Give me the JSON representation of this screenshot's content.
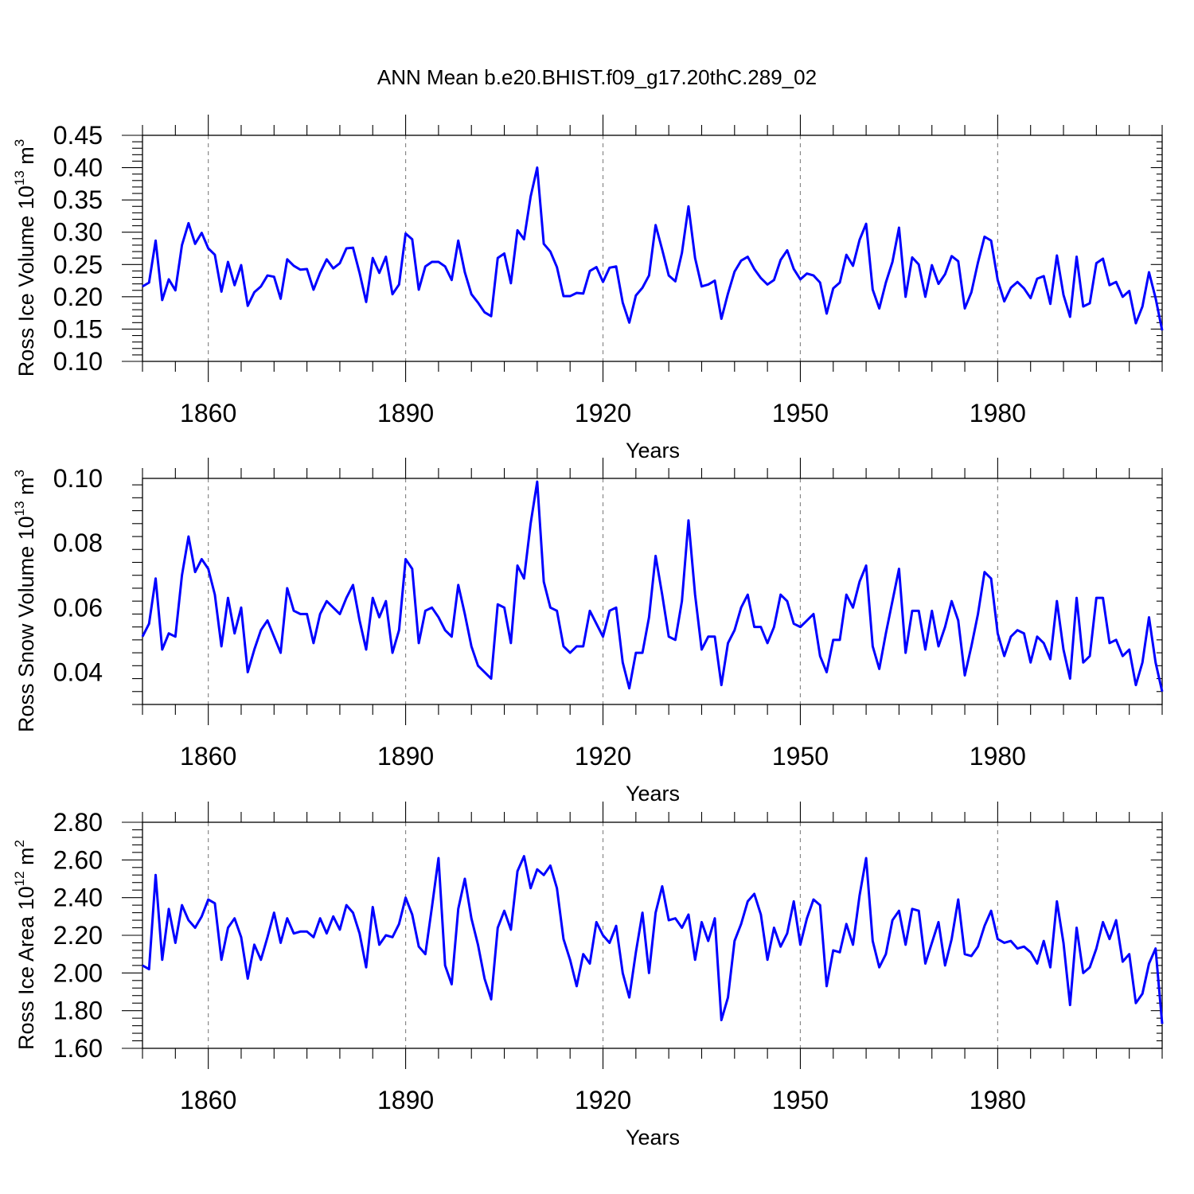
{
  "title": "ANN Mean b.e20.BHIST.f09_g17.20thC.289_02",
  "line_color": "#0000ff",
  "chart_data": [
    {
      "type": "line",
      "ylabel": "Ross Ice Volume 10",
      "ylabel_exp": "13",
      "ylabel_unit": " m",
      "ylabel_unit_exp": "3",
      "xlabel": "Years",
      "xlim": [
        1850,
        2005
      ],
      "ylim": [
        0.1,
        0.45
      ],
      "yticks": [
        "0.10",
        "0.15",
        "0.20",
        "0.25",
        "0.30",
        "0.35",
        "0.40",
        "0.45"
      ],
      "xticks": [
        "1860",
        "1890",
        "1920",
        "1950",
        "1980"
      ],
      "grid": "dashed vertical at major x ticks",
      "x_start": 1850,
      "values": [
        0.216,
        0.222,
        0.287,
        0.195,
        0.227,
        0.21,
        0.28,
        0.314,
        0.282,
        0.299,
        0.275,
        0.265,
        0.208,
        0.254,
        0.218,
        0.249,
        0.186,
        0.207,
        0.216,
        0.233,
        0.231,
        0.197,
        0.258,
        0.248,
        0.242,
        0.243,
        0.211,
        0.237,
        0.258,
        0.244,
        0.252,
        0.275,
        0.276,
        0.237,
        0.192,
        0.26,
        0.237,
        0.262,
        0.204,
        0.219,
        0.298,
        0.289,
        0.211,
        0.247,
        0.254,
        0.254,
        0.247,
        0.226,
        0.287,
        0.238,
        0.204,
        0.191,
        0.176,
        0.17,
        0.26,
        0.267,
        0.221,
        0.303,
        0.289,
        0.355,
        0.4,
        0.282,
        0.27,
        0.246,
        0.201,
        0.201,
        0.206,
        0.205,
        0.24,
        0.246,
        0.223,
        0.245,
        0.247,
        0.191,
        0.16,
        0.202,
        0.214,
        0.233,
        0.311,
        0.273,
        0.233,
        0.224,
        0.268,
        0.34,
        0.26,
        0.216,
        0.219,
        0.225,
        0.166,
        0.205,
        0.239,
        0.256,
        0.262,
        0.243,
        0.229,
        0.219,
        0.226,
        0.257,
        0.272,
        0.243,
        0.227,
        0.236,
        0.233,
        0.222,
        0.174,
        0.213,
        0.222,
        0.265,
        0.248,
        0.288,
        0.313,
        0.211,
        0.182,
        0.222,
        0.254,
        0.307,
        0.2,
        0.261,
        0.25,
        0.2,
        0.249,
        0.22,
        0.235,
        0.263,
        0.255,
        0.182,
        0.207,
        0.253,
        0.293,
        0.287,
        0.226,
        0.193,
        0.214,
        0.223,
        0.213,
        0.198,
        0.228,
        0.232,
        0.189,
        0.264,
        0.203,
        0.169,
        0.262,
        0.185,
        0.19,
        0.252,
        0.259,
        0.218,
        0.223,
        0.2,
        0.209,
        0.159,
        0.185,
        0.238,
        0.198,
        0.148
      ]
    },
    {
      "type": "line",
      "ylabel": "Ross Snow Volume 10",
      "ylabel_exp": "13",
      "ylabel_unit": " m",
      "ylabel_unit_exp": "3",
      "xlabel": "Years",
      "xlim": [
        1850,
        2005
      ],
      "ylim": [
        0.03,
        0.1
      ],
      "yticks": [
        "0.04",
        "0.06",
        "0.08",
        "0.10"
      ],
      "yticks_at": [
        0.04,
        0.06,
        0.08,
        0.1
      ],
      "xticks": [
        "1860",
        "1890",
        "1920",
        "1950",
        "1980"
      ],
      "grid": "dashed vertical at major x ticks",
      "x_start": 1850,
      "values": [
        0.051,
        0.055,
        0.069,
        0.047,
        0.052,
        0.051,
        0.07,
        0.082,
        0.071,
        0.075,
        0.072,
        0.064,
        0.048,
        0.063,
        0.052,
        0.06,
        0.04,
        0.047,
        0.053,
        0.056,
        0.051,
        0.046,
        0.066,
        0.059,
        0.058,
        0.058,
        0.049,
        0.058,
        0.062,
        0.06,
        0.058,
        0.063,
        0.067,
        0.056,
        0.047,
        0.063,
        0.057,
        0.062,
        0.046,
        0.053,
        0.075,
        0.072,
        0.049,
        0.059,
        0.06,
        0.057,
        0.053,
        0.051,
        0.067,
        0.058,
        0.048,
        0.042,
        0.04,
        0.038,
        0.061,
        0.06,
        0.049,
        0.073,
        0.069,
        0.086,
        0.099,
        0.068,
        0.06,
        0.059,
        0.048,
        0.046,
        0.048,
        0.048,
        0.059,
        0.055,
        0.051,
        0.059,
        0.06,
        0.043,
        0.035,
        0.046,
        0.046,
        0.057,
        0.076,
        0.064,
        0.051,
        0.05,
        0.062,
        0.087,
        0.064,
        0.047,
        0.051,
        0.051,
        0.036,
        0.049,
        0.053,
        0.06,
        0.064,
        0.054,
        0.054,
        0.049,
        0.054,
        0.064,
        0.062,
        0.055,
        0.054,
        0.056,
        0.058,
        0.045,
        0.04,
        0.05,
        0.05,
        0.064,
        0.06,
        0.068,
        0.073,
        0.048,
        0.041,
        0.052,
        0.062,
        0.072,
        0.046,
        0.059,
        0.059,
        0.047,
        0.059,
        0.048,
        0.054,
        0.062,
        0.056,
        0.039,
        0.048,
        0.058,
        0.071,
        0.069,
        0.052,
        0.045,
        0.051,
        0.053,
        0.052,
        0.043,
        0.051,
        0.049,
        0.044,
        0.062,
        0.047,
        0.038,
        0.063,
        0.043,
        0.045,
        0.063,
        0.063,
        0.049,
        0.05,
        0.045,
        0.047,
        0.036,
        0.043,
        0.057,
        0.043,
        0.034
      ]
    },
    {
      "type": "line",
      "ylabel": "Ross Ice Area 10",
      "ylabel_exp": "12",
      "ylabel_unit": " m",
      "ylabel_unit_exp": "2",
      "xlabel": "Years",
      "xlim": [
        1850,
        2005
      ],
      "ylim": [
        1.6,
        2.8
      ],
      "yticks": [
        "1.60",
        "1.80",
        "2.00",
        "2.20",
        "2.40",
        "2.60",
        "2.80"
      ],
      "xticks": [
        "1860",
        "1890",
        "1920",
        "1950",
        "1980"
      ],
      "grid": "dashed vertical at major x ticks",
      "x_start": 1850,
      "values": [
        2.04,
        2.02,
        2.52,
        2.07,
        2.34,
        2.16,
        2.36,
        2.28,
        2.24,
        2.3,
        2.39,
        2.37,
        2.07,
        2.24,
        2.29,
        2.19,
        1.97,
        2.15,
        2.07,
        2.19,
        2.32,
        2.16,
        2.29,
        2.21,
        2.22,
        2.22,
        2.19,
        2.29,
        2.21,
        2.3,
        2.23,
        2.36,
        2.32,
        2.21,
        2.03,
        2.35,
        2.15,
        2.2,
        2.19,
        2.26,
        2.4,
        2.31,
        2.14,
        2.1,
        2.35,
        2.61,
        2.04,
        1.94,
        2.34,
        2.5,
        2.29,
        2.15,
        1.97,
        1.86,
        2.24,
        2.33,
        2.23,
        2.54,
        2.62,
        2.45,
        2.55,
        2.52,
        2.57,
        2.45,
        2.18,
        2.07,
        1.93,
        2.1,
        2.05,
        2.27,
        2.2,
        2.16,
        2.25,
        2.0,
        1.87,
        2.11,
        2.32,
        2.0,
        2.32,
        2.46,
        2.28,
        2.29,
        2.24,
        2.31,
        2.07,
        2.27,
        2.17,
        2.29,
        1.75,
        1.87,
        2.17,
        2.26,
        2.38,
        2.42,
        2.31,
        2.07,
        2.24,
        2.14,
        2.21,
        2.38,
        2.15,
        2.29,
        2.39,
        2.36,
        1.93,
        2.12,
        2.11,
        2.26,
        2.15,
        2.41,
        2.61,
        2.17,
        2.03,
        2.1,
        2.28,
        2.33,
        2.15,
        2.34,
        2.33,
        2.05,
        2.16,
        2.27,
        2.04,
        2.18,
        2.39,
        2.1,
        2.09,
        2.14,
        2.25,
        2.33,
        2.18,
        2.16,
        2.17,
        2.13,
        2.14,
        2.11,
        2.05,
        2.17,
        2.03,
        2.38,
        2.16,
        1.83,
        2.24,
        2.0,
        2.03,
        2.13,
        2.27,
        2.18,
        2.28,
        2.06,
        2.1,
        1.84,
        1.89,
        2.05,
        2.13,
        1.73
      ]
    }
  ]
}
